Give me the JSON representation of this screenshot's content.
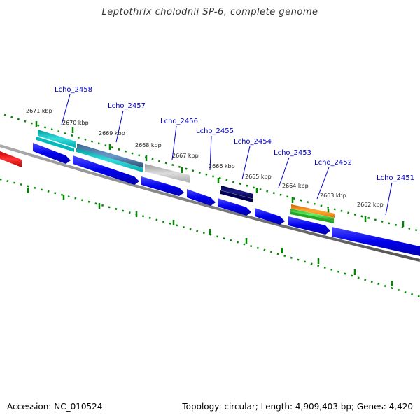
{
  "title": "Leptothrix cholodnii SP-6, complete genome",
  "footer": {
    "accession": "Accession: NC_010524",
    "summary": "Topology: circular; Length: 4,909,403 bp; Genes: 4,420"
  },
  "ticks": [
    {
      "label": "2671 kbp"
    },
    {
      "label": "2670 kbp"
    },
    {
      "label": "2669 kbp"
    },
    {
      "label": "2668 kbp"
    },
    {
      "label": "2667 kbp"
    },
    {
      "label": "2666 kbp"
    },
    {
      "label": "2665 kbp"
    },
    {
      "label": "2664 kbp"
    },
    {
      "label": "2663 kbp"
    },
    {
      "label": "2662 kbp"
    }
  ],
  "genes": [
    {
      "name": "Lcho_2458"
    },
    {
      "name": "Lcho_2457"
    },
    {
      "name": "Lcho_2456"
    },
    {
      "name": "Lcho_2455"
    },
    {
      "name": "Lcho_2454"
    },
    {
      "name": "Lcho_2453"
    },
    {
      "name": "Lcho_2452"
    },
    {
      "name": "Lcho_2451"
    }
  ],
  "colors": {
    "cds": "#0000ee",
    "cyan": "#00cccc",
    "steel": "#4a78a8",
    "gray": "#b8b8b8",
    "navy": "#000066",
    "orange": "#ff8c00",
    "green": "#33cc33",
    "red": "#ee0000",
    "backbone": "#808080",
    "dots": "#008800"
  }
}
